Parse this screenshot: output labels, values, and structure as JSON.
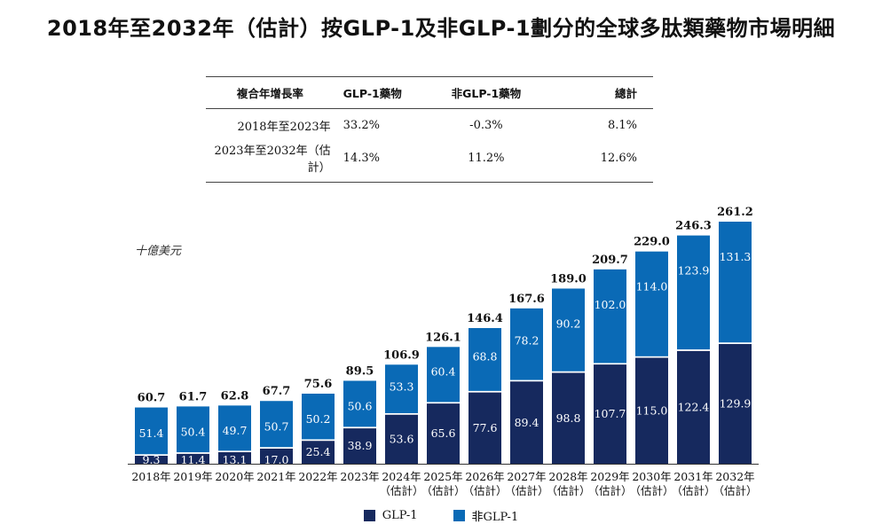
{
  "title": "2018年至2032年（估計）按GLP-1及非GLP-1劃分的全球多肽類藥物市場明細",
  "table": {
    "headers": [
      "複合年增長率",
      "GLP-1藥物",
      "非GLP-1藥物",
      "總計"
    ],
    "rows": [
      {
        "period": "2018年至2023年",
        "glp1": "33.2%",
        "non_glp1": "-0.3%",
        "total": "8.1%"
      },
      {
        "period": "2023年至2032年（估計）",
        "glp1": "14.3%",
        "non_glp1": "11.2%",
        "total": "12.6%"
      }
    ]
  },
  "unit_label": "十億美元",
  "colors": {
    "glp1": "#16295e",
    "non_glp1": "#0a6ab6",
    "axis": "#333333"
  },
  "chart_data": {
    "type": "bar",
    "stacked": true,
    "categories": [
      [
        "2018年"
      ],
      [
        "2019年"
      ],
      [
        "2020年"
      ],
      [
        "2021年"
      ],
      [
        "2022年"
      ],
      [
        "2023年"
      ],
      [
        "2024年",
        "（估計）"
      ],
      [
        "2025年",
        "（估計）"
      ],
      [
        "2026年",
        "（估計）"
      ],
      [
        "2027年",
        "（估計）"
      ],
      [
        "2028年",
        "（估計）"
      ],
      [
        "2029年",
        "（估計）"
      ],
      [
        "2030年",
        "（估計）"
      ],
      [
        "2031年",
        "（估計）"
      ],
      [
        "2032年",
        "（估計）"
      ]
    ],
    "series": [
      {
        "name": "GLP-1",
        "values": [
          9.3,
          11.4,
          13.1,
          17.0,
          25.4,
          38.9,
          53.6,
          65.6,
          77.6,
          89.4,
          98.8,
          107.7,
          115.0,
          122.4,
          129.9
        ]
      },
      {
        "name": "非GLP-1",
        "values": [
          51.4,
          50.4,
          49.7,
          50.7,
          50.2,
          50.6,
          53.3,
          60.4,
          68.8,
          78.2,
          90.2,
          102.0,
          114.0,
          123.9,
          131.3
        ]
      }
    ],
    "totals": [
      60.7,
      61.7,
      62.8,
      67.7,
      75.6,
      89.5,
      106.9,
      126.1,
      146.4,
      167.6,
      189.0,
      209.7,
      229.0,
      246.3,
      261.2
    ],
    "ylabel": "十億美元",
    "ylim": [
      0,
      261.2
    ],
    "legend": "bottom-center"
  }
}
